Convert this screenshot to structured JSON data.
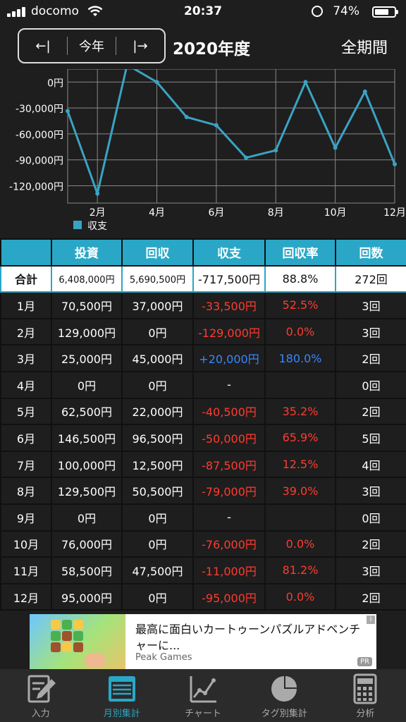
{
  "status_bar": {
    "carrier": "docomo",
    "time": "20:37",
    "battery": "74%",
    "battery_level": 0.74
  },
  "header": {
    "prev_label": "←|",
    "current_label": "今年",
    "next_label": "|→",
    "fiscal_year": "2020年度",
    "all_period": "全期間"
  },
  "chart_data": {
    "type": "line",
    "x": [
      1,
      2,
      3,
      4,
      5,
      6,
      7,
      8,
      9,
      10,
      11,
      12
    ],
    "x_tick_labels": [
      "2月",
      "4月",
      "6月",
      "8月",
      "10月",
      "12月"
    ],
    "x_ticks": [
      2,
      4,
      6,
      8,
      10,
      12
    ],
    "series": [
      {
        "name": "収支",
        "values": [
          -33500,
          -129000,
          20000,
          0,
          -40500,
          -50000,
          -87500,
          -79000,
          0,
          -76000,
          -11000,
          -95000
        ]
      }
    ],
    "y_tick_labels": [
      "0円",
      "-30,000円",
      "-60,000円",
      "-90,000円",
      "-120,000円"
    ],
    "y_ticks": [
      0,
      -30000,
      -60000,
      -90000,
      -120000
    ],
    "ylim": [
      -140000,
      15000
    ],
    "line_color": "#3aa3c4",
    "grid": true,
    "legend_position": "bottom-left"
  },
  "table": {
    "headers": [
      "",
      "投資",
      "回収",
      "収支",
      "回収率",
      "回数"
    ],
    "total": {
      "label": "合計",
      "invest": "6,408,000円",
      "collect": "5,690,500円",
      "balance": "-717,500円",
      "rate": "88.8%",
      "count": "272回"
    },
    "rows": [
      {
        "month": "1月",
        "invest": "70,500円",
        "collect": "37,000円",
        "balance": "-33,500円",
        "rate": "52.5%",
        "count": "3回",
        "sign": "neg"
      },
      {
        "month": "2月",
        "invest": "129,000円",
        "collect": "0円",
        "balance": "-129,000円",
        "rate": "0.0%",
        "count": "3回",
        "sign": "neg"
      },
      {
        "month": "3月",
        "invest": "25,000円",
        "collect": "45,000円",
        "balance": "+20,000円",
        "rate": "180.0%",
        "count": "2回",
        "sign": "pos"
      },
      {
        "month": "4月",
        "invest": "0円",
        "collect": "0円",
        "balance": "-",
        "rate": "",
        "count": "0回",
        "sign": "none"
      },
      {
        "month": "5月",
        "invest": "62,500円",
        "collect": "22,000円",
        "balance": "-40,500円",
        "rate": "35.2%",
        "count": "2回",
        "sign": "neg"
      },
      {
        "month": "6月",
        "invest": "146,500円",
        "collect": "96,500円",
        "balance": "-50,000円",
        "rate": "65.9%",
        "count": "5回",
        "sign": "neg"
      },
      {
        "month": "7月",
        "invest": "100,000円",
        "collect": "12,500円",
        "balance": "-87,500円",
        "rate": "12.5%",
        "count": "4回",
        "sign": "neg"
      },
      {
        "month": "8月",
        "invest": "129,500円",
        "collect": "50,500円",
        "balance": "-79,000円",
        "rate": "39.0%",
        "count": "3回",
        "sign": "neg"
      },
      {
        "month": "9月",
        "invest": "0円",
        "collect": "0円",
        "balance": "-",
        "rate": "",
        "count": "0回",
        "sign": "none"
      },
      {
        "month": "10月",
        "invest": "76,000円",
        "collect": "0円",
        "balance": "-76,000円",
        "rate": "0.0%",
        "count": "2回",
        "sign": "neg"
      },
      {
        "month": "11月",
        "invest": "58,500円",
        "collect": "47,500円",
        "balance": "-11,000円",
        "rate": "81.2%",
        "count": "3回",
        "sign": "neg"
      },
      {
        "month": "12月",
        "invest": "95,000円",
        "collect": "0円",
        "balance": "-95,000円",
        "rate": "0.0%",
        "count": "2回",
        "sign": "neg"
      }
    ]
  },
  "ad": {
    "title": "最高に面白いカートゥーンパズルアドベンチャーに...",
    "brand": "Peak Games",
    "pr": "PR",
    "info": "i"
  },
  "tabs": [
    {
      "label": "入力",
      "icon": "edit-icon",
      "active": false
    },
    {
      "label": "月別集計",
      "icon": "calendar-list-icon",
      "active": true
    },
    {
      "label": "チャート",
      "icon": "line-chart-icon",
      "active": false
    },
    {
      "label": "タグ別集計",
      "icon": "pie-chart-icon",
      "active": false
    },
    {
      "label": "分析",
      "icon": "calculator-icon",
      "active": false
    }
  ]
}
